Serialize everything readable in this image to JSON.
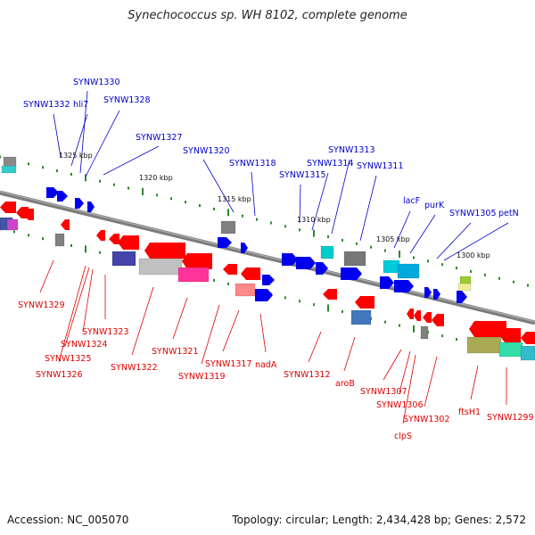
{
  "title": "Synechococcus sp. WH 8102, complete genome",
  "footer": {
    "accession": "Accession: NC_005070",
    "summary": "Topology: circular; Length: 2,434,428 bp; Genes: 2,572"
  },
  "colors": {
    "forward_label": "#0000cc",
    "reverse_label": "#dd0000",
    "backbone": "#808080",
    "tick_dots": "#2a8a2a"
  },
  "scale_ticks": [
    "1325 kbp",
    "1320 kbp",
    "1315 kbp",
    "1310 kbp",
    "1305 kbp",
    "1300 kbp"
  ],
  "forward_genes": [
    "SYNW1332",
    "hli7",
    "SYNW1330",
    "SYNW1328",
    "SYNW1327",
    "SYNW1320",
    "SYNW1318",
    "SYNW1315",
    "SYNW1314",
    "SYNW1313",
    "SYNW1311",
    "lacF",
    "purK",
    "SYNW1305",
    "petN"
  ],
  "reverse_genes": [
    "SYNW1329",
    "SYNW1323",
    "SYNW1324",
    "SYNW1325",
    "SYNW1326",
    "SYNW1322",
    "SYNW1321",
    "SYNW1319",
    "SYNW1317",
    "nadA",
    "SYNW1312",
    "aroB",
    "SYNW1307",
    "SYNW1306",
    "clpS",
    "SYNW1302",
    "ftsH1",
    "SYNW1299"
  ]
}
